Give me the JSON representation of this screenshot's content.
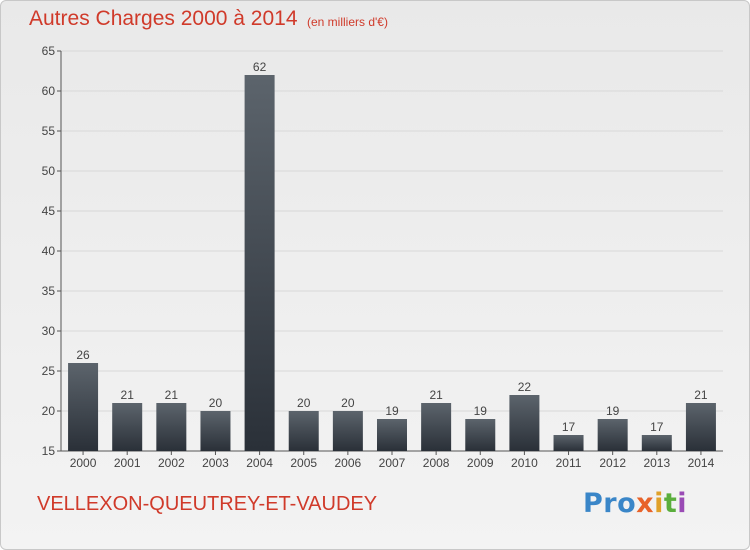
{
  "header": {
    "title": "Autres Charges 2000 à 2014",
    "unit": "(en milliers d'€)"
  },
  "footer": {
    "commune": "VELLEXON-QUEUTREY-ET-VAUDEY",
    "logo": [
      "Pro",
      "x",
      "i",
      "t",
      "i"
    ]
  },
  "colors": {
    "title": "#d03a2a",
    "bar_top": "#5c646c",
    "bar_bottom": "#2a3038",
    "grid": "#d8d8d8"
  },
  "chart_data": {
    "type": "bar",
    "categories": [
      "2000",
      "2001",
      "2002",
      "2003",
      "2004",
      "2005",
      "2006",
      "2007",
      "2008",
      "2009",
      "2010",
      "2011",
      "2012",
      "2013",
      "2014"
    ],
    "values": [
      26,
      21,
      21,
      20,
      62,
      20,
      20,
      19,
      21,
      19,
      22,
      17,
      19,
      17,
      21
    ],
    "ylim": [
      15,
      65
    ],
    "yticks": [
      15,
      20,
      25,
      30,
      35,
      40,
      45,
      50,
      55,
      60,
      65
    ],
    "grid": true,
    "legend": "none"
  }
}
